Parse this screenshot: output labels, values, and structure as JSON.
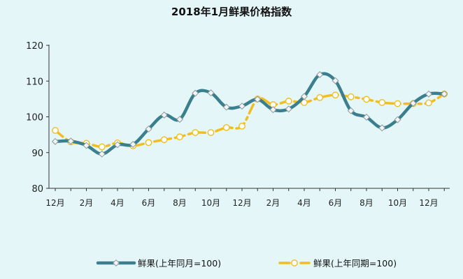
{
  "chart_data": {
    "type": "line",
    "title": "2018年1月鲜果价格指数",
    "xlabel": "",
    "ylabel": "",
    "ylim": [
      80,
      120
    ],
    "yticks": [
      80,
      90,
      100,
      110,
      120
    ],
    "x_tick_labels": [
      "12月",
      "2月",
      "4月",
      "6月",
      "8月",
      "10月",
      "12月",
      "2月",
      "4月",
      "6月",
      "8月",
      "10月",
      "12月"
    ],
    "legend_position": "bottom",
    "grid": false,
    "series": [
      {
        "name": "鲜果(上年同月=100)",
        "color": "#3a7f8e",
        "style": "solid-thick",
        "values": [
          93.1,
          93.2,
          92.0,
          89.6,
          92.2,
          92.3,
          96.6,
          100.5,
          99.3,
          106.6,
          106.7,
          102.7,
          103.0,
          104.9,
          102.0,
          102.2,
          105.7,
          111.8,
          110.1,
          101.7,
          99.9,
          96.9,
          99.2,
          103.8,
          106.4,
          106.4
        ]
      },
      {
        "name": "鲜果(上年同期=100)",
        "color": "#f0be1e",
        "style": "dashed",
        "values": [
          96.2,
          93.0,
          92.6,
          91.6,
          92.7,
          91.9,
          92.8,
          93.6,
          94.4,
          95.6,
          95.6,
          97.0,
          97.4,
          105.0,
          103.4,
          104.4,
          104.0,
          105.4,
          106.1,
          105.6,
          104.9,
          104.0,
          103.7,
          103.7,
          103.9,
          106.4
        ]
      }
    ]
  }
}
